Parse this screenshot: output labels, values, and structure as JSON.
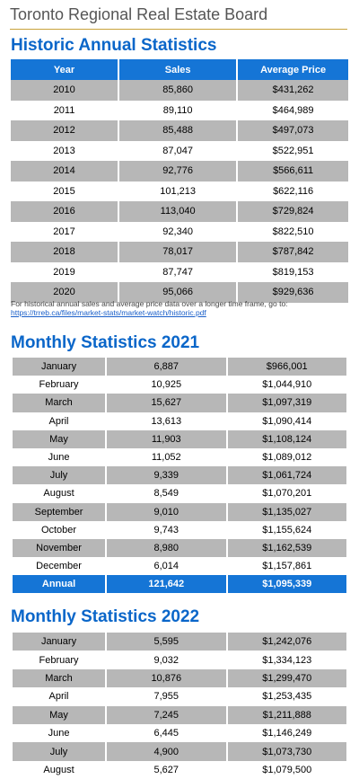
{
  "board_title": "Toronto Regional Real Estate Board",
  "historic": {
    "title": "Historic Annual Statistics",
    "headers": [
      "Year",
      "Sales",
      "Average Price"
    ],
    "rows": [
      [
        "2010",
        "85,860",
        "$431,262"
      ],
      [
        "2011",
        "89,110",
        "$464,989"
      ],
      [
        "2012",
        "85,488",
        "$497,073"
      ],
      [
        "2013",
        "87,047",
        "$522,951"
      ],
      [
        "2014",
        "92,776",
        "$566,611"
      ],
      [
        "2015",
        "101,213",
        "$622,116"
      ],
      [
        "2016",
        "113,040",
        "$729,824"
      ],
      [
        "2017",
        "92,340",
        "$822,510"
      ],
      [
        "2018",
        "78,017",
        "$787,842"
      ],
      [
        "2019",
        "87,747",
        "$819,153"
      ],
      [
        "2020",
        "95,066",
        "$929,636"
      ]
    ],
    "note": "For historical annual sales and average price data over a longer time frame, go to:",
    "link": "https://trreb.ca/files/market-stats/market-watch/historic.pdf"
  },
  "monthly_2021": {
    "title": "Monthly Statistics 2021",
    "rows": [
      [
        "January",
        "6,887",
        "$966,001"
      ],
      [
        "February",
        "10,925",
        "$1,044,910"
      ],
      [
        "March",
        "15,627",
        "$1,097,319"
      ],
      [
        "April",
        "13,613",
        "$1,090,414"
      ],
      [
        "May",
        "11,903",
        "$1,108,124"
      ],
      [
        "June",
        "11,052",
        "$1,089,012"
      ],
      [
        "July",
        "9,339",
        "$1,061,724"
      ],
      [
        "August",
        "8,549",
        "$1,070,201"
      ],
      [
        "September",
        "9,010",
        "$1,135,027"
      ],
      [
        "October",
        "9,743",
        "$1,155,624"
      ],
      [
        "November",
        "8,980",
        "$1,162,539"
      ],
      [
        "December",
        "6,014",
        "$1,157,861"
      ]
    ],
    "annual": [
      "Annual",
      "121,642",
      "$1,095,339"
    ]
  },
  "monthly_2022": {
    "title": "Monthly Statistics 2022",
    "rows": [
      [
        "January",
        "5,595",
        "$1,242,076"
      ],
      [
        "February",
        "9,032",
        "$1,334,123"
      ],
      [
        "March",
        "10,876",
        "$1,299,470"
      ],
      [
        "April",
        "7,955",
        "$1,253,435"
      ],
      [
        "May",
        "7,245",
        "$1,211,888"
      ],
      [
        "June",
        "6,445",
        "$1,146,249"
      ],
      [
        "July",
        "4,900",
        "$1,073,730"
      ],
      [
        "August",
        "5,627",
        "$1,079,500"
      ]
    ]
  }
}
